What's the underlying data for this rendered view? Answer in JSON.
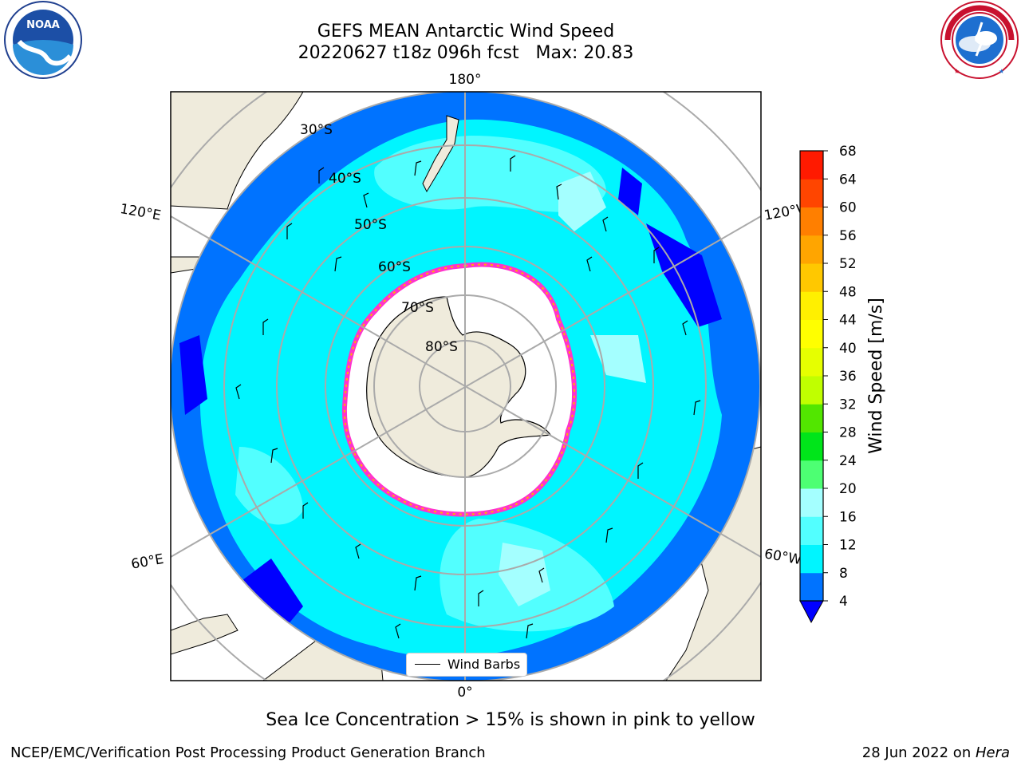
{
  "title": {
    "line1": "GEFS MEAN Antarctic Wind Speed",
    "line2": "20220627 t18z 096h fcst   Max: 20.83"
  },
  "logos": {
    "left": {
      "name": "noaa-logo",
      "text": "NOAA",
      "ring_text": "NATIONAL OCEANIC AND ATMOSPHERIC ADMINISTRATION · U.S. DEPARTMENT OF COMMERCE"
    },
    "right": {
      "name": "nws-logo",
      "ring_text": "NATIONAL WEATHER SERVICE"
    }
  },
  "map": {
    "projection": "south-polar-stereographic",
    "meridian_labels": {
      "top": "180°",
      "bottom": "0°",
      "upper_left": "120°E",
      "upper_right": "120°W",
      "lower_left": "60°E",
      "lower_right": "60°W"
    },
    "latitude_labels": [
      "30°S",
      "40°S",
      "50°S",
      "60°S",
      "70°S",
      "80°S"
    ],
    "legend": {
      "label": "Wind Barbs"
    },
    "colors": {
      "land": "#efebdc",
      "ice": "#ffffff",
      "ice_edge": "#ff33cc",
      "ice_edge2": "#ffb300",
      "grid": "#aaaaaa"
    }
  },
  "colorbar": {
    "label": "Wind Speed [m/s]",
    "ticks": [
      "4",
      "8",
      "12",
      "16",
      "20",
      "24",
      "28",
      "32",
      "36",
      "40",
      "44",
      "48",
      "52",
      "56",
      "60",
      "64",
      "68"
    ],
    "colors": [
      "#0073ff",
      "#00f5ff",
      "#52ffff",
      "#a4ffff",
      "#4dff73",
      "#00e51a",
      "#52e600",
      "#c0ff00",
      "#e6ff00",
      "#ffff00",
      "#fff000",
      "#ffc800",
      "#ffa500",
      "#ff7f00",
      "#ff4500",
      "#ff1a00"
    ],
    "under_color": "#0000ff"
  },
  "caption": "Sea Ice Concentration > 15% is shown in pink to yellow",
  "footer": {
    "left": "NCEP/EMC/Verification Post Processing Product Generation Branch",
    "right_prefix": "28 Jun 2022 on ",
    "right_host": "Hera"
  }
}
